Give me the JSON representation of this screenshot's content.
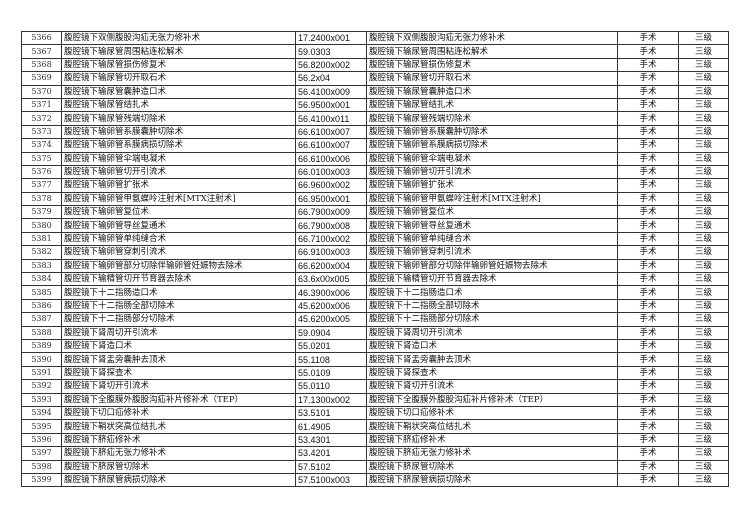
{
  "rows": [
    [
      "5366",
      "腹腔镜下双侧腹股沟疝无张力修补术",
      "17.2400x001",
      "手术",
      "三级"
    ],
    [
      "5367",
      "腹腔镜下输尿管周围粘连松解术",
      "59.0303",
      "手术",
      "三级"
    ],
    [
      "5368",
      "腹腔镜下输尿管损伤修复术",
      "56.8200x002",
      "手术",
      "三级"
    ],
    [
      "5369",
      "腹腔镜下输尿管切开取石术",
      "56.2x04",
      "手术",
      "三级"
    ],
    [
      "5370",
      "腹腔镜下输尿管囊肿造口术",
      "56.4100x009",
      "手术",
      "三级"
    ],
    [
      "5371",
      "腹腔镜下输尿管结扎术",
      "56.9500x001",
      "手术",
      "三级"
    ],
    [
      "5372",
      "腹腔镜下输尿管残端切除术",
      "56.4100x011",
      "手术",
      "三级"
    ],
    [
      "5373",
      "腹腔镜下输卵管系膜囊肿切除术",
      "66.6100x007",
      "手术",
      "三级"
    ],
    [
      "5374",
      "腹腔镜下输卵管系膜病损切除术",
      "66.6100x007",
      "手术",
      "三级"
    ],
    [
      "5375",
      "腹腔镜下输卵管伞端电凝术",
      "66.6100x006",
      "手术",
      "三级"
    ],
    [
      "5376",
      "腹腔镜下输卵管切开引流术",
      "66.0100x003",
      "手术",
      "三级"
    ],
    [
      "5377",
      "腹腔镜下输卵管扩张术",
      "66.9600x002",
      "手术",
      "三级"
    ],
    [
      "5378",
      "腹腔镜下输卵管甲氨蝶呤注射术[MTX注射术]",
      "66.9500x001",
      "手术",
      "三级"
    ],
    [
      "5379",
      "腹腔镜下输卵管复位术",
      "66.7900x009",
      "手术",
      "三级"
    ],
    [
      "5380",
      "腹腔镜下输卵管导丝复通术",
      "66.7900x008",
      "手术",
      "三级"
    ],
    [
      "5381",
      "腹腔镜下输卵管单纯缝合术",
      "66.7100x002",
      "手术",
      "三级"
    ],
    [
      "5382",
      "腹腔镜下输卵管穿刺引流术",
      "66.9100x003",
      "手术",
      "三级"
    ],
    [
      "5383",
      "腹腔镜下输卵管部分切除伴输卵管妊娠物去除术",
      "66.6200x004",
      "手术",
      "三级"
    ],
    [
      "5384",
      "腹腔镜下输精管切开节育器去除术",
      "63.6x00x005",
      "手术",
      "三级"
    ],
    [
      "5385",
      "腹腔镜下十二指肠造口术",
      "46.3900x006",
      "手术",
      "三级"
    ],
    [
      "5386",
      "腹腔镜下十二指肠全部切除术",
      "45.6200x006",
      "手术",
      "三级"
    ],
    [
      "5387",
      "腹腔镜下十二指肠部分切除术",
      "45.6200x005",
      "手术",
      "三级"
    ],
    [
      "5388",
      "腹腔镜下肾周切开引流术",
      "59.0904",
      "手术",
      "三级"
    ],
    [
      "5389",
      "腹腔镜下肾造口术",
      "55.0201",
      "手术",
      "三级"
    ],
    [
      "5390",
      "腹腔镜下肾盂旁囊肿去顶术",
      "55.1108",
      "手术",
      "三级"
    ],
    [
      "5391",
      "腹腔镜下肾探查术",
      "55.0109",
      "手术",
      "三级"
    ],
    [
      "5392",
      "腹腔镜下肾切开引流术",
      "55.0110",
      "手术",
      "三级"
    ],
    [
      "5393",
      "腹腔镜下全腹膜外腹股沟疝补片修补术（TEP）",
      "17.1300x002",
      "手术",
      "三级"
    ],
    [
      "5394",
      "腹腔镜下切口疝修补术",
      "53.5101",
      "手术",
      "三级"
    ],
    [
      "5395",
      "腹腔镜下鞘状突高位结扎术",
      "61.4905",
      "手术",
      "三级"
    ],
    [
      "5396",
      "腹腔镜下脐疝修补术",
      "53.4301",
      "手术",
      "三级"
    ],
    [
      "5397",
      "腹腔镜下脐疝无张力修补术",
      "53.4201",
      "手术",
      "三级"
    ],
    [
      "5398",
      "腹腔镜下脐尿管切除术",
      "57.5102",
      "手术",
      "三级"
    ],
    [
      "5399",
      "腹腔镜下脐尿管病损切除术",
      "57.5100x003",
      "手术",
      "三级"
    ]
  ]
}
